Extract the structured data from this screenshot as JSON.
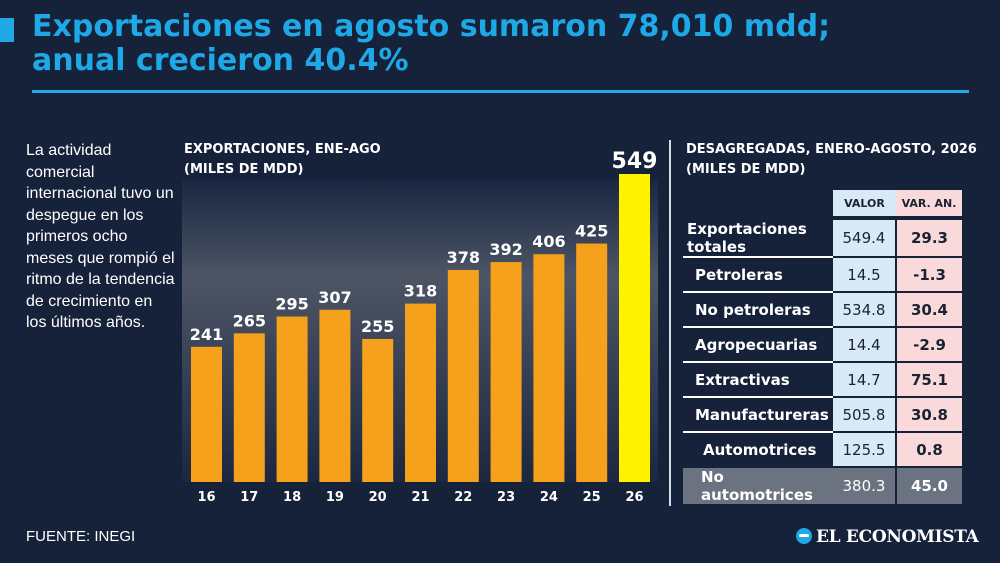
{
  "header": {
    "title_line1": "Exportaciones en agosto sumaron 78,010 mdd;",
    "title_line2": "anual crecieron 40.4%"
  },
  "intro_text": "La actividad comercial internacional tuvo un despegue en los primeros ocho meses que rompió el ritmo de la tendencia de crecimiento en los últimos años.",
  "footer": {
    "source": "FUENTE: INEGI",
    "brand": "EL ECONOMISTA"
  },
  "colors": {
    "background": "#16213a",
    "accent": "#1ea9e6",
    "bar": "#f5a11c",
    "bar_highlight": "#fff200",
    "valor_column": "#d8eaf6",
    "var_column": "#f9d9d9",
    "total_row": "#6b7280"
  },
  "chart_data": {
    "type": "bar",
    "title_line1": "EXPORTACIONES, ENE-AGO",
    "title_line2": "(MILES DE MDD)",
    "categories": [
      "16",
      "17",
      "18",
      "19",
      "20",
      "21",
      "22",
      "23",
      "24",
      "25",
      "26"
    ],
    "values": [
      241,
      265,
      295,
      307,
      255,
      318,
      378,
      392,
      406,
      425,
      549
    ],
    "highlight_index": 10,
    "ylim": [
      0,
      549
    ],
    "grid": false,
    "legend": "none"
  },
  "table": {
    "title_line1": "DESAGREGADAS, ENERO-AGOSTO, 2026",
    "title_line2": "(MILES DE MDD)",
    "col_valor": "VALOR",
    "col_var": "VAR. AN.",
    "rows": [
      {
        "label": "Exportaciones totales",
        "valor": "549.4",
        "var": "29.3"
      },
      {
        "label": "Petroleras",
        "valor": "14.5",
        "var": "-1.3"
      },
      {
        "label": "No petroleras",
        "valor": "534.8",
        "var": "30.4"
      },
      {
        "label": "Agropecuarias",
        "valor": "14.4",
        "var": "-2.9"
      },
      {
        "label": "Extractivas",
        "valor": "14.7",
        "var": "75.1"
      },
      {
        "label": "Manufactureras",
        "valor": "505.8",
        "var": "30.8"
      },
      {
        "label": "Automotrices",
        "valor": "125.5",
        "var": "0.8"
      },
      {
        "label": "No automotrices",
        "valor": "380.3",
        "var": "45.0"
      }
    ]
  }
}
